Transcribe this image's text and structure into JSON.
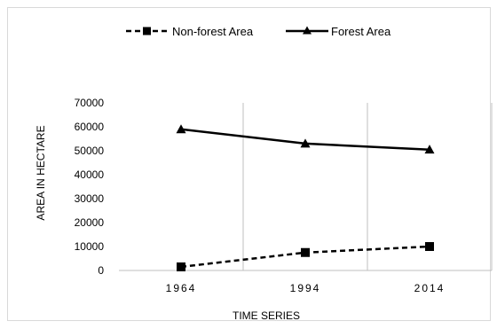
{
  "chart_data": {
    "type": "line",
    "title": "",
    "xlabel": "TIME SERIES",
    "ylabel": "AREA IN HECTARE",
    "categories": [
      "1964",
      "1994",
      "2014"
    ],
    "ylim": [
      0,
      70000
    ],
    "yticks": [
      "0",
      "10000",
      "20000",
      "30000",
      "40000",
      "50000",
      "60000",
      "70000"
    ],
    "grid": "vertical",
    "legend_position": "top",
    "series": [
      {
        "name": "Non-forest Area",
        "values": [
          1500,
          7500,
          10000
        ],
        "style": "dashed",
        "marker": "square",
        "color": "#000000"
      },
      {
        "name": "Forest Area",
        "values": [
          59000,
          53000,
          50500
        ],
        "style": "solid",
        "marker": "triangle",
        "color": "#000000"
      }
    ]
  }
}
